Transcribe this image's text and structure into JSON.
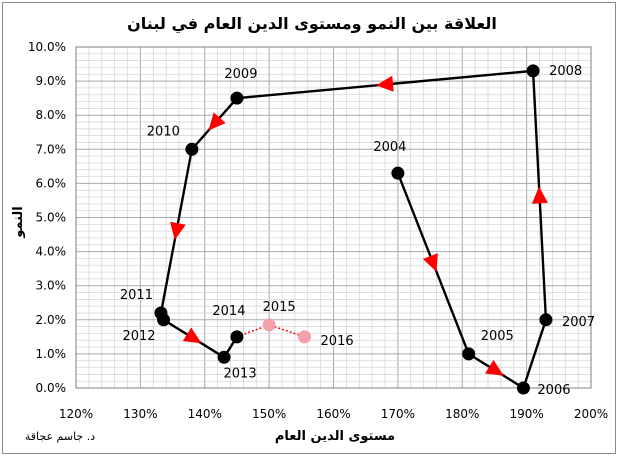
{
  "chart_data": {
    "type": "scatter",
    "title": "العلاقة بين النمو ومستوى الدين العام في لبنان",
    "xlabel": "مستوى الدين العام",
    "ylabel": "النمو",
    "xlim": [
      1.2,
      2.0
    ],
    "ylim": [
      0.0,
      0.1
    ],
    "x_tick_labels": [
      "120%",
      "130%",
      "140%",
      "150%",
      "160%",
      "170%",
      "180%",
      "190%",
      "200%"
    ],
    "y_tick_labels": [
      "0.0%",
      "1.0%",
      "2.0%",
      "3.0%",
      "4.0%",
      "5.0%",
      "6.0%",
      "7.0%",
      "8.0%",
      "9.0%",
      "10.0%"
    ],
    "grid": true,
    "series": [
      {
        "style": "connected",
        "color": "#000000",
        "arrow_color": "#ff0000",
        "points": [
          {
            "label": "2004",
            "x": 1.7,
            "y": 0.063
          },
          {
            "label": "2005",
            "x": 1.81,
            "y": 0.01
          },
          {
            "label": "2006",
            "x": 1.895,
            "y": 0.0
          },
          {
            "label": "2007",
            "x": 1.93,
            "y": 0.02
          },
          {
            "label": "2008",
            "x": 1.91,
            "y": 0.093
          },
          {
            "label": "2009",
            "x": 1.45,
            "y": 0.085
          },
          {
            "label": "2010",
            "x": 1.38,
            "y": 0.07
          },
          {
            "label": "2011",
            "x": 1.332,
            "y": 0.022
          },
          {
            "label": "2012",
            "x": 1.336,
            "y": 0.02
          },
          {
            "label": "2013",
            "x": 1.43,
            "y": 0.009
          },
          {
            "label": "2014",
            "x": 1.45,
            "y": 0.015
          }
        ]
      },
      {
        "style": "dotted",
        "color": "#f4a0a8",
        "line_color": "#ff0000",
        "points": [
          {
            "label": "2014",
            "x": 1.45,
            "y": 0.015
          },
          {
            "label": "2015",
            "x": 1.5,
            "y": 0.0185
          },
          {
            "label": "2016",
            "x": 1.555,
            "y": 0.015
          }
        ]
      }
    ],
    "author_note": "د. جاسم عجاقة"
  }
}
